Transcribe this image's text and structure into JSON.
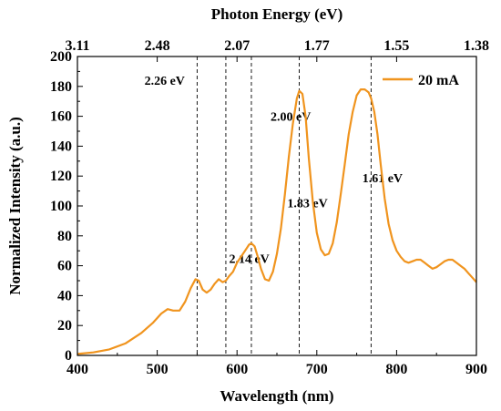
{
  "chart_data": {
    "type": "line",
    "xlabel": "Wavelength (nm)",
    "ylabel": "Normalized Intensity (a.u.)",
    "top_axis_label": "Photon Energy (eV)",
    "xlim": [
      400,
      900
    ],
    "ylim": [
      0,
      200
    ],
    "x_ticks": [
      "400",
      "500",
      "600",
      "700",
      "800",
      "900"
    ],
    "y_ticks": [
      "0",
      "20",
      "40",
      "60",
      "80",
      "100",
      "120",
      "140",
      "160",
      "180",
      "200"
    ],
    "top_ticks": [
      {
        "label": "3.11",
        "wavelength": 400
      },
      {
        "label": "2.48",
        "wavelength": 500
      },
      {
        "label": "2.07",
        "wavelength": 600
      },
      {
        "label": "1.77",
        "wavelength": 700
      },
      {
        "label": "1.55",
        "wavelength": 800
      },
      {
        "label": "1.38",
        "wavelength": 900
      }
    ],
    "series": [
      {
        "name": "20 mA",
        "color": "#f0941e",
        "x": [
          400,
          420,
          440,
          460,
          480,
          495,
          505,
          513,
          520,
          528,
          535,
          542,
          548,
          552,
          557,
          562,
          567,
          572,
          577,
          582,
          586,
          590,
          595,
          600,
          605,
          610,
          615,
          618,
          622,
          626,
          630,
          635,
          640,
          645,
          650,
          655,
          660,
          665,
          670,
          675,
          678,
          682,
          686,
          690,
          695,
          700,
          705,
          710,
          715,
          720,
          725,
          730,
          735,
          740,
          745,
          750,
          755,
          760,
          765,
          768,
          772,
          776,
          780,
          785,
          790,
          795,
          800,
          805,
          810,
          815,
          820,
          825,
          830,
          835,
          840,
          845,
          850,
          855,
          860,
          865,
          870,
          875,
          880,
          885,
          890,
          895,
          900
        ],
        "y": [
          1,
          2,
          4,
          8,
          15,
          22,
          28,
          31,
          30,
          30,
          36,
          45,
          51,
          50,
          44,
          42,
          44,
          48,
          51,
          49,
          50,
          53,
          56,
          62,
          66,
          70,
          74,
          75,
          73,
          66,
          58,
          51,
          50,
          56,
          68,
          85,
          108,
          133,
          155,
          172,
          177,
          175,
          160,
          132,
          103,
          82,
          71,
          67,
          68,
          75,
          89,
          108,
          128,
          148,
          163,
          174,
          178,
          178,
          176,
          172,
          163,
          148,
          128,
          105,
          88,
          77,
          70,
          66,
          63,
          62,
          63,
          64,
          64,
          62,
          60,
          58,
          59,
          61,
          63,
          64,
          64,
          62,
          60,
          58,
          55,
          52,
          49
        ]
      }
    ],
    "dashed_lines": [
      {
        "wavelength": 550,
        "label": "2.26 eV",
        "label_x": 484,
        "label_y": 181
      },
      {
        "wavelength": 586,
        "label": "2.14 eV",
        "label_x": 590,
        "label_y": 62
      },
      {
        "wavelength": 618,
        "label": "2.00 eV",
        "label_x": 642,
        "label_y": 157
      },
      {
        "wavelength": 678,
        "label": "1.83 eV",
        "label_x": 663,
        "label_y": 99
      },
      {
        "wavelength": 768,
        "label": "1.61 eV",
        "label_x": 757,
        "label_y": 116
      }
    ],
    "grid": false,
    "legend_position": "top-right"
  }
}
